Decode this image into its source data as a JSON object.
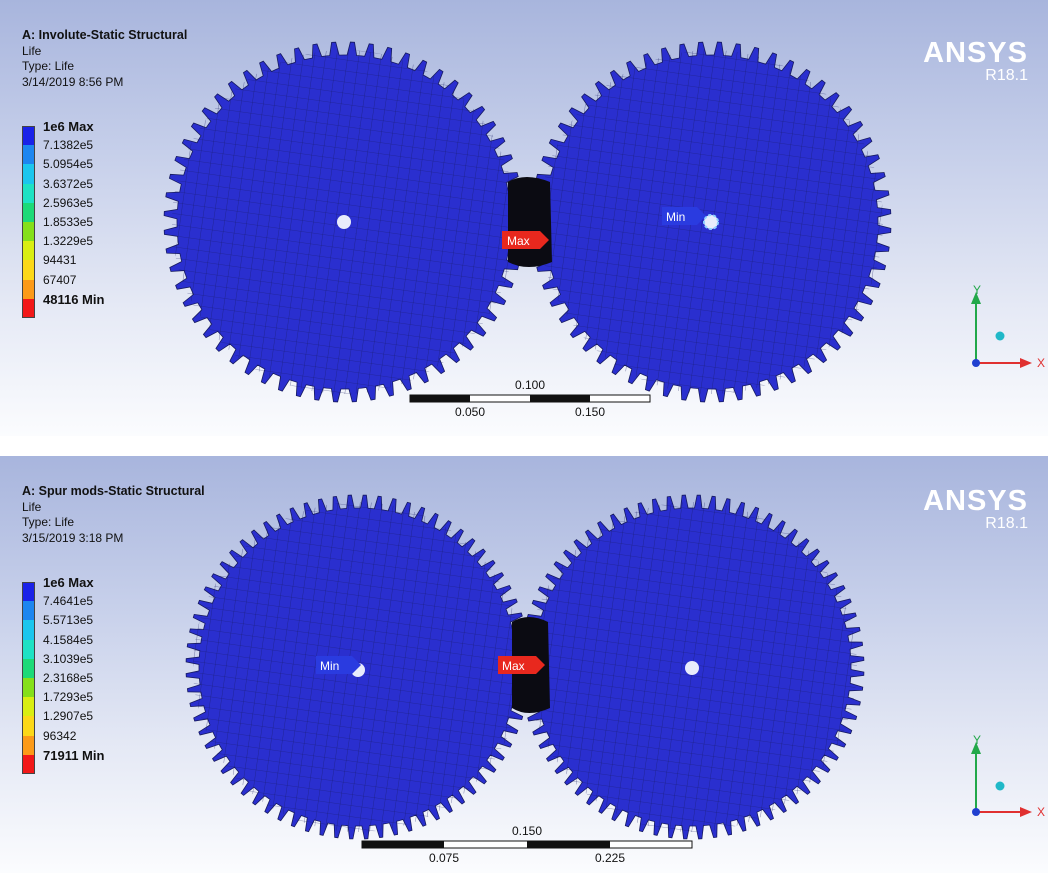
{
  "panels": [
    {
      "id": "top",
      "title": "A: Involute-Static Structural",
      "result": "Life",
      "type_line": "Type: Life",
      "date": "3/14/2019 8:56 PM",
      "legend": [
        {
          "label": "1e6 Max",
          "color": "#1a22e8",
          "bold": true
        },
        {
          "label": "7.1382e5",
          "color": "#1d86f0"
        },
        {
          "label": "5.0954e5",
          "color": "#1bc6ee"
        },
        {
          "label": "3.6372e5",
          "color": "#1ee2c4"
        },
        {
          "label": "2.5963e5",
          "color": "#1dda78"
        },
        {
          "label": "1.8533e5",
          "color": "#85e01a"
        },
        {
          "label": "1.3229e5",
          "color": "#d9ee12"
        },
        {
          "label": "94431",
          "color": "#fcd818"
        },
        {
          "label": "67407",
          "color": "#fc9a18"
        },
        {
          "label": "48116 Min",
          "color": "#f21818",
          "bold": true
        }
      ],
      "brand": "ANSYS",
      "version": "R18.1",
      "max_tag": "Max",
      "min_tag": "Min",
      "axis": {
        "x": "X",
        "y": "Y"
      },
      "scale": {
        "top_label": "0.100",
        "bottom_labels": [
          "0.050",
          "0.150"
        ]
      }
    },
    {
      "id": "bottom",
      "title": "A: Spur mods-Static Structural",
      "result": "Life",
      "type_line": "Type: Life",
      "date": "3/15/2019 3:18 PM",
      "legend": [
        {
          "label": "1e6 Max",
          "color": "#1a22e8",
          "bold": true
        },
        {
          "label": "7.4641e5",
          "color": "#1d86f0"
        },
        {
          "label": "5.5713e5",
          "color": "#1bc6ee"
        },
        {
          "label": "4.1584e5",
          "color": "#1ee2c4"
        },
        {
          "label": "3.1039e5",
          "color": "#1dda78"
        },
        {
          "label": "2.3168e5",
          "color": "#85e01a"
        },
        {
          "label": "1.7293e5",
          "color": "#d9ee12"
        },
        {
          "label": "1.2907e5",
          "color": "#fcd818"
        },
        {
          "label": "96342",
          "color": "#fc9a18"
        },
        {
          "label": "71911 Min",
          "color": "#f21818",
          "bold": true
        }
      ],
      "brand": "ANSYS",
      "version": "R18.1",
      "max_tag": "Max",
      "min_tag": "Min",
      "axis": {
        "x": "X",
        "y": "Y"
      },
      "scale": {
        "top_label": "0.150",
        "bottom_labels": [
          "0.075",
          "0.225"
        ]
      }
    }
  ],
  "colors": {
    "gear": "#2a2fcf",
    "mesh": "#161a60",
    "tag_max": "#e8281e",
    "tag_min": "#2a3be0"
  }
}
